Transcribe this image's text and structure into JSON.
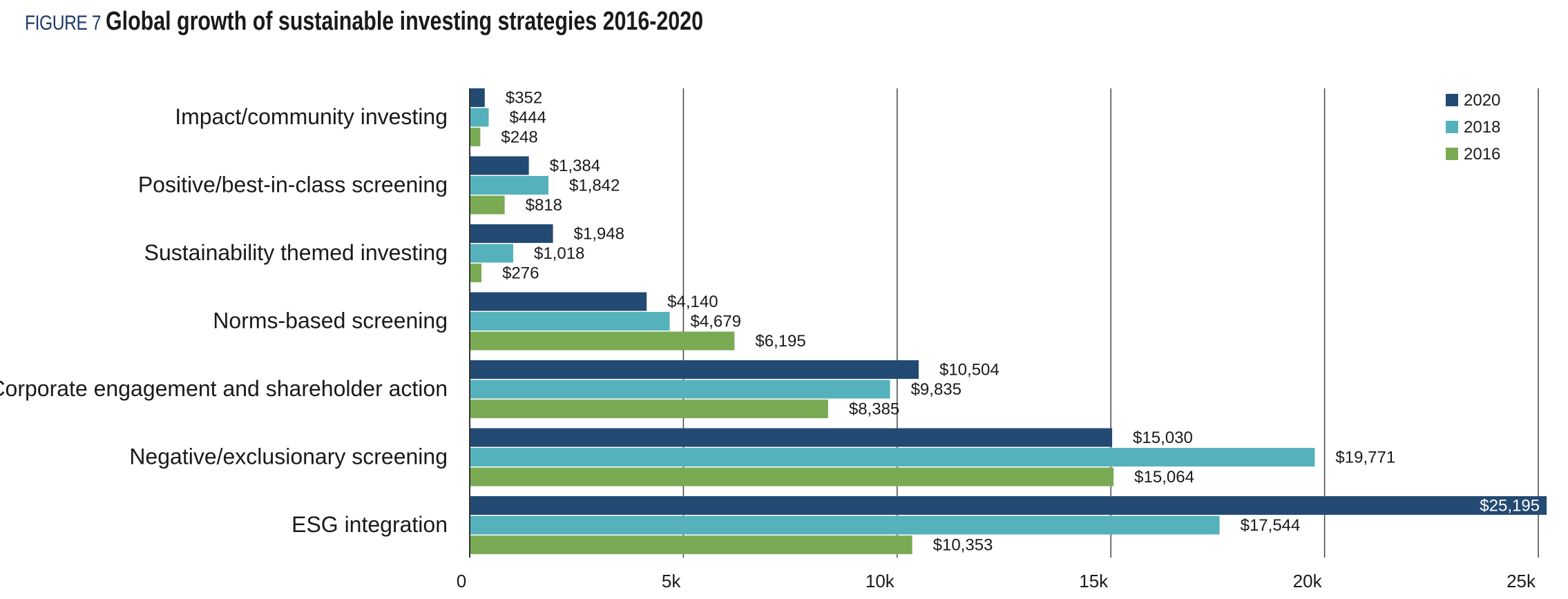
{
  "header": {
    "figure_label": "FIGURE 7",
    "title": "Global growth of sustainable investing strategies 2016-2020"
  },
  "chart_data": {
    "type": "bar",
    "orientation": "horizontal",
    "title": "Global growth of sustainable investing strategies 2016-2020",
    "xlabel": "",
    "ylabel": "",
    "xlim": [
      0,
      25000
    ],
    "grid": true,
    "legend_position": "top-right",
    "x_ticks": [
      0,
      5000,
      10000,
      15000,
      20000,
      25000
    ],
    "x_tick_labels": [
      "0",
      "5k",
      "10k",
      "15k",
      "20k",
      "25k"
    ],
    "categories": [
      "Impact/community investing",
      "Positive/best-in-class screening",
      "Sustainability themed investing",
      "Norms-based screening",
      "Corporate engagement and shareholder action",
      "Negative/exclusionary screening",
      "ESG integration"
    ],
    "series": [
      {
        "name": "2020",
        "color": "#234a73",
        "values": [
          352,
          1384,
          1948,
          4140,
          10504,
          15030,
          25195
        ],
        "labels": [
          "$352",
          "$1,384",
          "$1,948",
          "$4,140",
          "$10,504",
          "$15,030",
          "$25,195"
        ]
      },
      {
        "name": "2018",
        "color": "#55b2bc",
        "values": [
          444,
          1842,
          1018,
          4679,
          9835,
          19771,
          17544
        ],
        "labels": [
          "$444",
          "$1,842",
          "$1,018",
          "$4,679",
          "$9,835",
          "$19,771",
          "$17,544"
        ]
      },
      {
        "name": "2016",
        "color": "#7aab54",
        "values": [
          248,
          818,
          276,
          6195,
          8385,
          15064,
          10353
        ],
        "labels": [
          "$248",
          "$818",
          "$276",
          "$6,195",
          "$8,385",
          "$15,064",
          "$10,353"
        ]
      }
    ]
  }
}
